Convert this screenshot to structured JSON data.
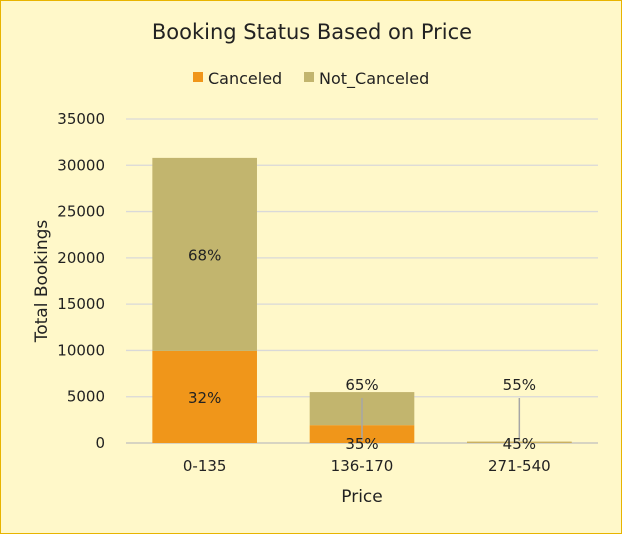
{
  "chart_data": {
    "type": "bar",
    "stacked": true,
    "title": "Booking Status Based on Price",
    "xlabel": "Price",
    "ylabel": "Total Bookings",
    "categories": [
      "0-135",
      "136-170",
      "271-540"
    ],
    "series": [
      {
        "name": "Canceled",
        "color": "#F0961A",
        "values": [
          9950,
          1925,
          18
        ],
        "labels": [
          "32%",
          "35%",
          "45%"
        ]
      },
      {
        "name": "Not_Canceled",
        "color": "#C2B56E",
        "values": [
          20850,
          3575,
          22
        ],
        "labels": [
          "68%",
          "65%",
          "55%"
        ]
      }
    ],
    "ylim": [
      0,
      35000
    ],
    "yticks": [
      0,
      5000,
      10000,
      15000,
      20000,
      25000,
      30000,
      35000
    ],
    "grid": true,
    "legend_position": "top",
    "colors": {
      "background": "#FFF8C9",
      "border": "#E8B400",
      "grid": "#D9D9D9"
    }
  }
}
